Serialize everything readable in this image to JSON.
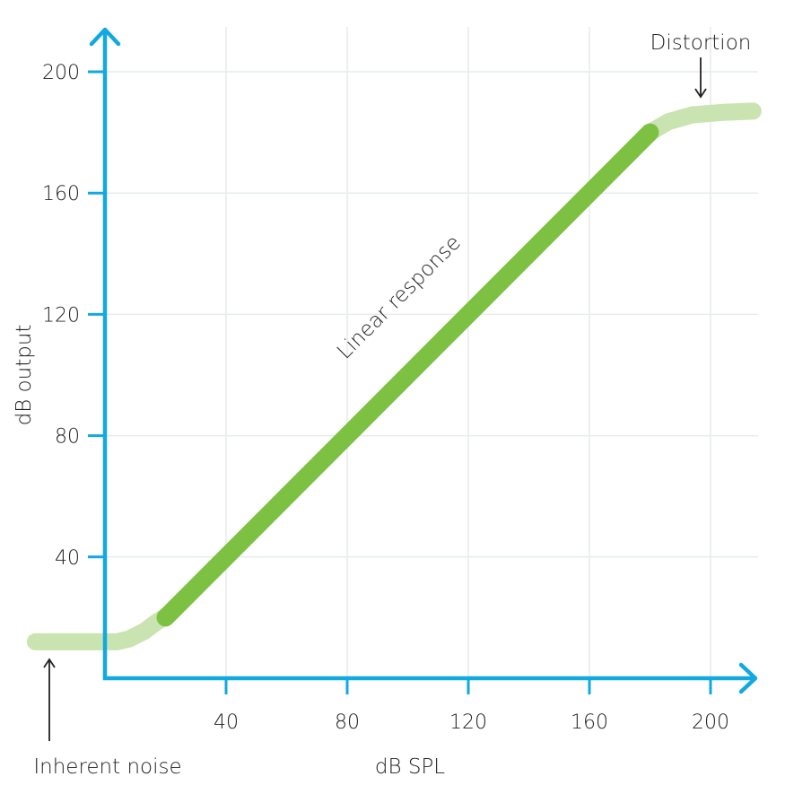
{
  "chart_data": {
    "type": "line",
    "xlabel": "dB SPL",
    "ylabel": "dB output",
    "xlim": [
      -10,
      218
    ],
    "ylim": [
      0,
      210
    ],
    "x_ticks": [
      40,
      80,
      120,
      160,
      200
    ],
    "y_ticks": [
      40,
      80,
      120,
      160,
      200
    ],
    "grid": true,
    "colors": {
      "axis": "#12a8e0",
      "linear": "#7cc142",
      "nonlinear": "#c9e4b0",
      "grid": "#e6ecec"
    },
    "series": [
      {
        "label": "Inherent noise",
        "style": "nonlinear",
        "points": [
          [
            -23,
            12
          ],
          [
            4,
            12
          ],
          [
            8,
            13
          ],
          [
            13,
            15.5
          ],
          [
            17,
            18.5
          ],
          [
            21,
            21
          ]
        ]
      },
      {
        "label": "Linear response",
        "style": "linear",
        "points": [
          [
            20,
            20
          ],
          [
            180,
            180
          ]
        ]
      },
      {
        "label": "Distortion",
        "style": "nonlinear",
        "points": [
          [
            180,
            180
          ],
          [
            186,
            183.5
          ],
          [
            194,
            185.8
          ],
          [
            204,
            186.6
          ],
          [
            214,
            187
          ]
        ]
      }
    ],
    "annotations": [
      {
        "text": "Distortion",
        "position": "top-right",
        "arrow": "down"
      },
      {
        "text": "Inherent noise",
        "position": "bottom-left",
        "arrow": "up"
      }
    ]
  }
}
